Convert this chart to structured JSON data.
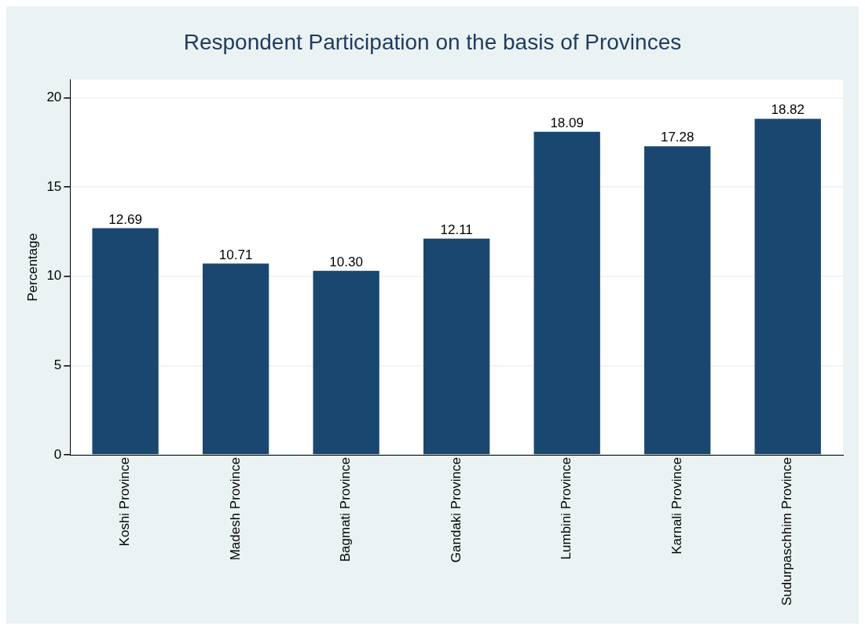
{
  "chart_data": {
    "type": "bar",
    "title": "Respondent Participation on the basis of Provinces",
    "ylabel": "Percentage",
    "categories": [
      "Koshi Province",
      "Madesh Province",
      "Bagmati Province",
      "Gandaki Province",
      "Lumbini Province",
      "Karnali Province",
      "Sudurpaschhim Province"
    ],
    "values": [
      12.69,
      10.71,
      10.3,
      12.11,
      18.09,
      17.28,
      18.82
    ],
    "value_labels": [
      "12.69",
      "10.71",
      "10.30",
      "12.11",
      "18.09",
      "17.28",
      "18.82"
    ],
    "color": "#1a476f",
    "ylim": [
      0,
      21
    ],
    "yticks": [
      0,
      5,
      10,
      15,
      20
    ],
    "grid": "y",
    "legend": false
  }
}
